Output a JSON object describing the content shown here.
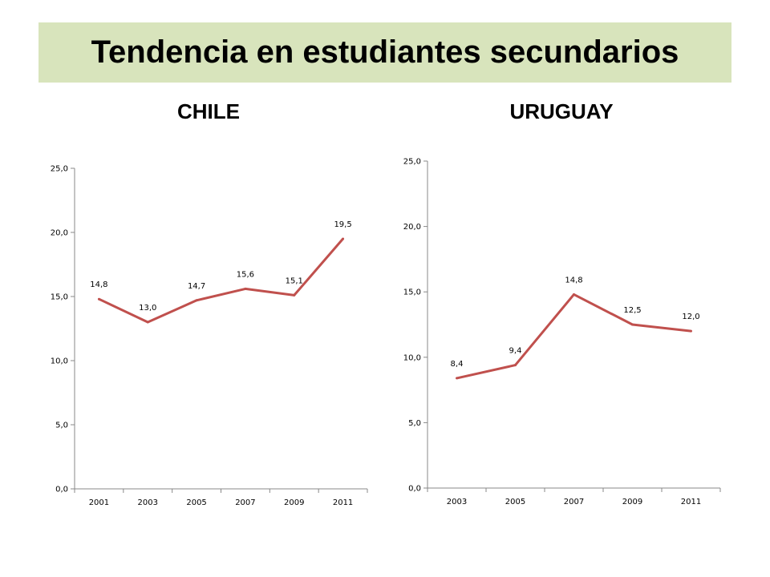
{
  "header": {
    "title": "Tendencia en estudiantes secundarios"
  },
  "colors": {
    "title_bg": "#d8e4bc",
    "line": "#c0504d",
    "axis": "#888888"
  },
  "chart_data": [
    {
      "id": "chile",
      "type": "line",
      "title": "CHILE",
      "categories": [
        "2001",
        "2003",
        "2005",
        "2007",
        "2009",
        "2011"
      ],
      "values": [
        14.8,
        13.0,
        14.7,
        15.6,
        15.1,
        19.5
      ],
      "labels": [
        "14,8",
        "13,0",
        "14,7",
        "15,6",
        "15,1",
        "19,5"
      ],
      "yticks": [
        "0,0",
        "5,0",
        "10,0",
        "15,0",
        "20,0",
        "25,0"
      ],
      "ylim": [
        0,
        25
      ],
      "grid": false,
      "legend": "none"
    },
    {
      "id": "uruguay",
      "type": "line",
      "title": "URUGUAY",
      "categories": [
        "2003",
        "2005",
        "2007",
        "2009",
        "2011"
      ],
      "values": [
        8.4,
        9.4,
        14.8,
        12.5,
        12.0
      ],
      "labels": [
        "8,4",
        "9,4",
        "14,8",
        "12,5",
        "12,0"
      ],
      "yticks": [
        "0,0",
        "5,0",
        "10,0",
        "15,0",
        "20,0",
        "25,0"
      ],
      "ylim": [
        0,
        25
      ],
      "grid": false,
      "legend": "none"
    }
  ]
}
